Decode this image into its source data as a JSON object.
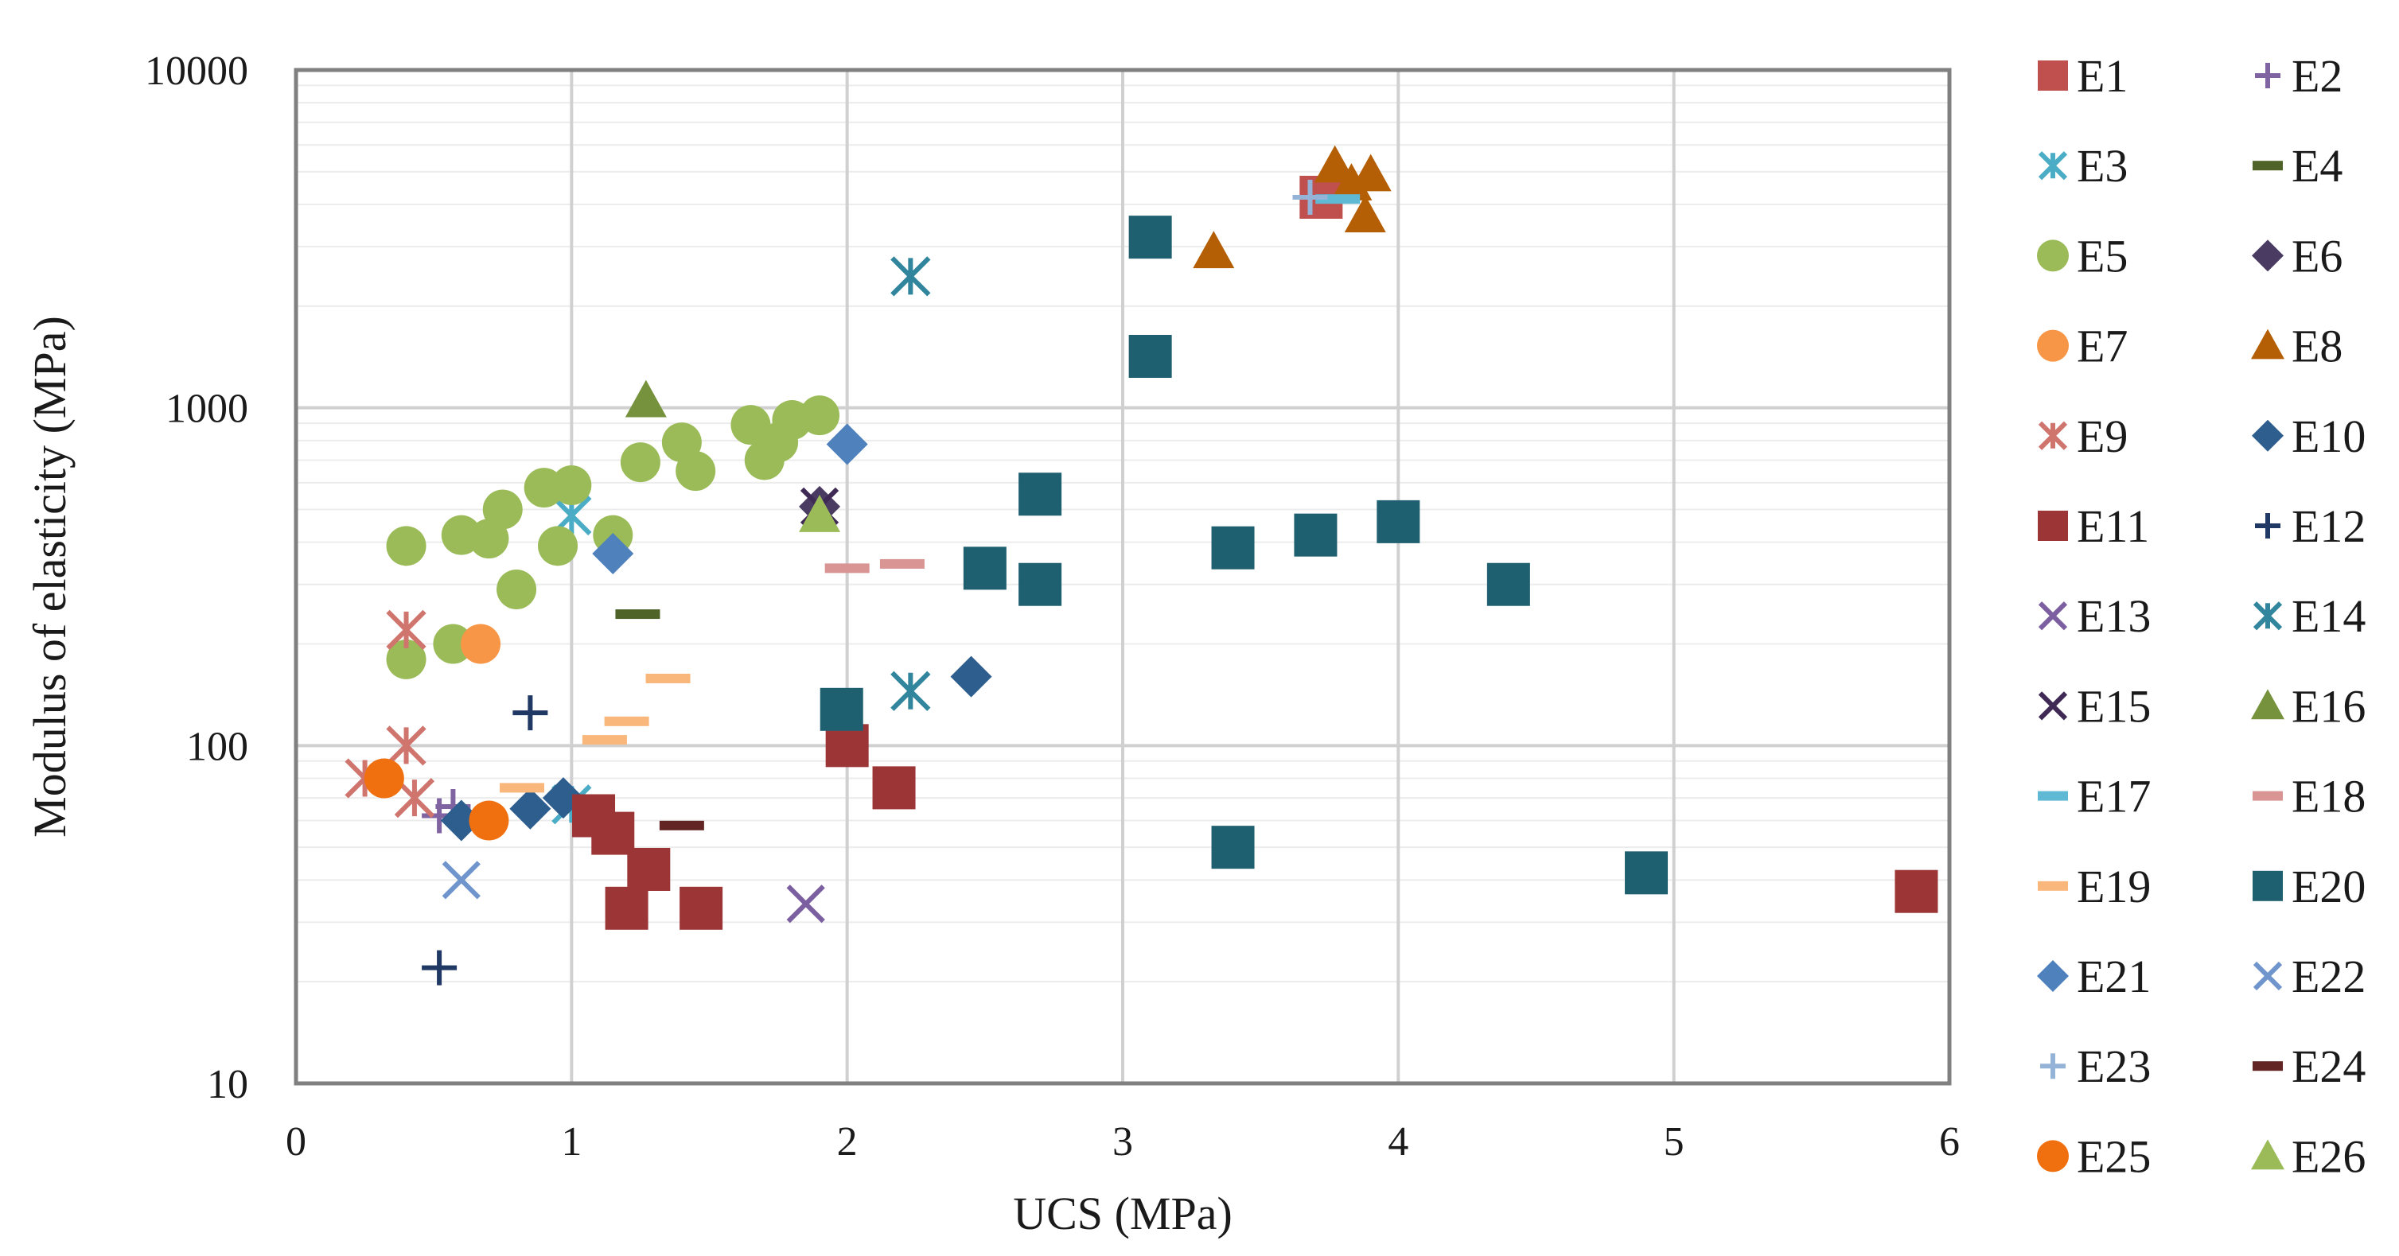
{
  "chart_data": {
    "type": "scatter",
    "title": "",
    "xlabel": "UCS (MPa)",
    "ylabel": "Modulus of elasticity (MPa)",
    "xlim": [
      0,
      6
    ],
    "ylim": [
      10,
      10000
    ],
    "yscale": "log",
    "x_ticks": [
      "0",
      "1",
      "2",
      "3",
      "4",
      "5",
      "6"
    ],
    "y_ticks": [
      "10",
      "100",
      "1000",
      "10000"
    ],
    "grid": true,
    "legend_position": "right",
    "series": [
      {
        "name": "E1",
        "marker": "square",
        "color": "#c0504d",
        "points": [
          [
            3.72,
            4200
          ]
        ]
      },
      {
        "name": "E2",
        "marker": "plus",
        "color": "#8064a2",
        "points": [
          [
            0.52,
            62
          ],
          [
            0.57,
            66
          ]
        ]
      },
      {
        "name": "E3",
        "marker": "asterisk",
        "color": "#4bacc6",
        "points": [
          [
            1.0,
            480
          ],
          [
            1.0,
            67
          ]
        ]
      },
      {
        "name": "E4",
        "marker": "dash",
        "color": "#4f6228",
        "points": [
          [
            1.24,
            245
          ]
        ]
      },
      {
        "name": "E5",
        "marker": "circle",
        "color": "#9bbb59",
        "points": [
          [
            0.4,
            390
          ],
          [
            0.4,
            180
          ],
          [
            0.57,
            200
          ],
          [
            0.6,
            420
          ],
          [
            0.7,
            410
          ],
          [
            0.75,
            500
          ],
          [
            0.8,
            290
          ],
          [
            0.9,
            580
          ],
          [
            0.95,
            390
          ],
          [
            1.0,
            590
          ],
          [
            1.15,
            420
          ],
          [
            1.25,
            690
          ],
          [
            1.4,
            790
          ],
          [
            1.45,
            650
          ],
          [
            1.65,
            890
          ],
          [
            1.7,
            700
          ],
          [
            1.75,
            790
          ],
          [
            1.8,
            920
          ],
          [
            1.9,
            950
          ]
        ]
      },
      {
        "name": "E6",
        "marker": "diamond",
        "color": "#4a3b62",
        "points": [
          [
            1.9,
            510
          ]
        ]
      },
      {
        "name": "E7",
        "marker": "circle",
        "color": "#f79646",
        "points": [
          [
            0.67,
            200
          ]
        ]
      },
      {
        "name": "E8",
        "marker": "triangle",
        "color": "#b45f06",
        "points": [
          [
            3.33,
            2900
          ],
          [
            3.77,
            5200
          ],
          [
            3.83,
            4600
          ],
          [
            3.88,
            3700
          ],
          [
            3.9,
            4900
          ]
        ]
      },
      {
        "name": "E9",
        "marker": "asterisk",
        "color": "#d0746e",
        "points": [
          [
            0.25,
            80
          ],
          [
            0.4,
            220
          ],
          [
            0.4,
            100
          ],
          [
            0.43,
            70
          ]
        ]
      },
      {
        "name": "E10",
        "marker": "diamond",
        "color": "#2e5e8e",
        "points": [
          [
            0.6,
            60
          ],
          [
            0.85,
            65
          ],
          [
            0.97,
            70
          ],
          [
            2.45,
            160
          ]
        ]
      },
      {
        "name": "E11",
        "marker": "square",
        "color": "#9c3636",
        "points": [
          [
            1.08,
            62
          ],
          [
            1.15,
            55
          ],
          [
            1.2,
            33
          ],
          [
            1.28,
            43
          ],
          [
            1.47,
            33
          ],
          [
            2.0,
            100
          ],
          [
            2.17,
            75
          ],
          [
            5.88,
            37
          ]
        ]
      },
      {
        "name": "E12",
        "marker": "plus",
        "color": "#1f3864",
        "points": [
          [
            0.52,
            22
          ],
          [
            0.85,
            125
          ]
        ]
      },
      {
        "name": "E13",
        "marker": "x",
        "color": "#7c5fa0",
        "points": [
          [
            1.85,
            34
          ]
        ]
      },
      {
        "name": "E14",
        "marker": "asterisk",
        "color": "#31859c",
        "points": [
          [
            2.23,
            2450
          ],
          [
            2.23,
            145
          ]
        ]
      },
      {
        "name": "E15",
        "marker": "x",
        "color": "#3f2a56",
        "points": [
          [
            1.9,
            510
          ]
        ]
      },
      {
        "name": "E16",
        "marker": "triangle",
        "color": "#76923c",
        "points": [
          [
            1.27,
            1050
          ]
        ]
      },
      {
        "name": "E17",
        "marker": "dash",
        "color": "#5fb8d4",
        "points": [
          [
            3.78,
            4150
          ]
        ]
      },
      {
        "name": "E18",
        "marker": "dash",
        "color": "#d99594",
        "points": [
          [
            2.0,
            335
          ],
          [
            2.2,
            345
          ]
        ]
      },
      {
        "name": "E19",
        "marker": "dash",
        "color": "#fab77b",
        "points": [
          [
            0.82,
            75
          ],
          [
            1.12,
            104
          ],
          [
            1.2,
            118
          ],
          [
            1.35,
            158
          ]
        ]
      },
      {
        "name": "E20",
        "marker": "square",
        "color": "#1f6070",
        "points": [
          [
            1.98,
            128
          ],
          [
            2.5,
            335
          ],
          [
            2.7,
            555
          ],
          [
            2.7,
            300
          ],
          [
            3.1,
            3200
          ],
          [
            3.1,
            1420
          ],
          [
            3.4,
            385
          ],
          [
            3.4,
            50
          ],
          [
            3.7,
            420
          ],
          [
            4.0,
            460
          ],
          [
            4.4,
            300
          ],
          [
            4.9,
            42
          ]
        ]
      },
      {
        "name": "E21",
        "marker": "diamond",
        "color": "#4f81bd",
        "points": [
          [
            1.15,
            370
          ],
          [
            2.0,
            780
          ]
        ]
      },
      {
        "name": "E22",
        "marker": "x",
        "color": "#6f95cc",
        "points": [
          [
            0.6,
            40
          ]
        ]
      },
      {
        "name": "E23",
        "marker": "plus",
        "color": "#95b3d7",
        "points": [
          [
            3.68,
            4200
          ]
        ]
      },
      {
        "name": "E24",
        "marker": "dash",
        "color": "#632523",
        "points": [
          [
            1.4,
            58
          ]
        ]
      },
      {
        "name": "E25",
        "marker": "circle",
        "color": "#f07010",
        "points": [
          [
            0.32,
            80
          ],
          [
            0.7,
            60
          ]
        ]
      },
      {
        "name": "E26",
        "marker": "triangle",
        "color": "#9bbb59",
        "points": [
          [
            1.9,
            480
          ]
        ]
      }
    ]
  }
}
